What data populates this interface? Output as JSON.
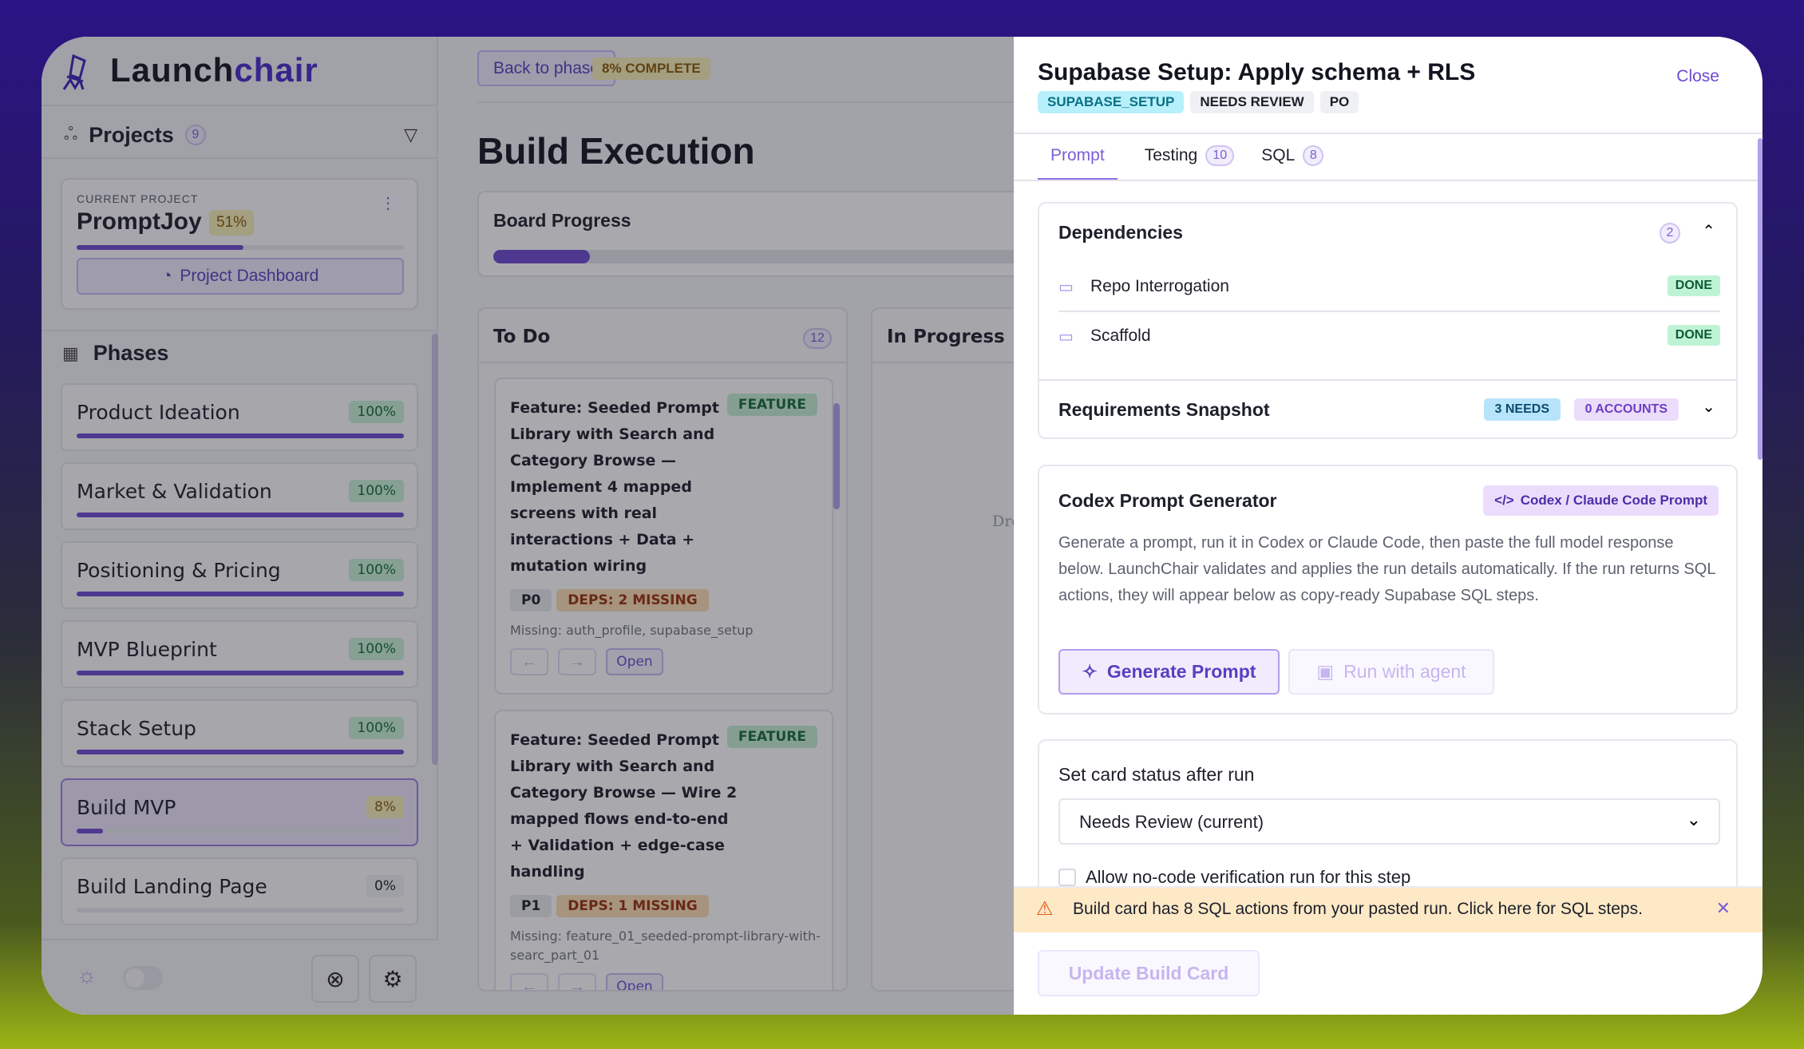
{
  "brand": {
    "name_a": "Launch",
    "name_b": "chair"
  },
  "sidebar": {
    "projects_label": "Projects",
    "projects_count": "9",
    "current_label": "CURRENT PROJECT",
    "project_name": "PromptJoy",
    "project_pct": "51%",
    "project_progress": 51,
    "dashboard_label": "Project Dashboard",
    "phases_label": "Phases",
    "phases": [
      {
        "name": "Product Ideation",
        "pct": "100%",
        "value": 100
      },
      {
        "name": "Market & Validation",
        "pct": "100%",
        "value": 100
      },
      {
        "name": "Positioning & Pricing",
        "pct": "100%",
        "value": 100
      },
      {
        "name": "MVP Blueprint",
        "pct": "100%",
        "value": 100
      },
      {
        "name": "Stack Setup",
        "pct": "100%",
        "value": 100
      },
      {
        "name": "Build MVP",
        "pct": "8%",
        "value": 8,
        "selected": true
      },
      {
        "name": "Build Landing Page",
        "pct": "0%",
        "value": 0
      }
    ]
  },
  "main": {
    "back_label": "Back to phase",
    "complete_badge": "8% COMPLETE",
    "title": "Build Execution",
    "board_progress_label": "Board Progress",
    "board_progress": 8,
    "columns": [
      {
        "title": "To Do",
        "count": "12"
      },
      {
        "title": "In Progress",
        "drop_hint": "Dro"
      }
    ],
    "cards": [
      {
        "title": "Feature: Seeded Prompt Library with Search and Category Browse — Implement 4 mapped screens with real interactions + Data + mutation wiring",
        "type": "FEATURE",
        "priority": "P0",
        "deps": "DEPS: 2 MISSING",
        "missing": "Missing: auth_profile, supabase_setup",
        "open": "Open"
      },
      {
        "title": "Feature: Seeded Prompt Library with Search and Category Browse — Wire 2 mapped flows end-to-end + Validation + edge-case handling",
        "type": "FEATURE",
        "priority": "P1",
        "deps": "DEPS: 1 MISSING",
        "missing": "Missing: feature_01_seeded-prompt-library-with-searc_part_01",
        "open": "Open"
      }
    ]
  },
  "panel": {
    "title": "Supabase Setup: Apply schema + RLS",
    "close": "Close",
    "tags": [
      "SUPABASE_SETUP",
      "NEEDS REVIEW",
      "PO"
    ],
    "tabs": [
      {
        "label": "Prompt",
        "active": true
      },
      {
        "label": "Testing",
        "count": "10"
      },
      {
        "label": "SQL",
        "count": "8"
      }
    ],
    "dependencies": {
      "title": "Dependencies",
      "count": "2",
      "items": [
        {
          "name": "Repo Interrogation",
          "status": "DONE"
        },
        {
          "name": "Scaffold",
          "status": "DONE"
        }
      ]
    },
    "requirements": {
      "title": "Requirements Snapshot",
      "needs": "3 NEEDS",
      "accounts": "0 ACCOUNTS"
    },
    "codex": {
      "title": "Codex Prompt Generator",
      "mode": "Codex / Claude Code Prompt",
      "description": "Generate a prompt, run it in Codex or Claude Code, then paste the full model response below. LaunchChair validates and applies the run details automatically. If the run returns SQL actions, they will appear below as copy-ready Supabase SQL steps.",
      "generate": "Generate Prompt",
      "run_agent": "Run with agent"
    },
    "status": {
      "title": "Set card status after run",
      "selected": "Needs Review (current)",
      "checkbox_label": "Allow no-code verification run for this step"
    },
    "banner": "Build card has 8 SQL actions from your pasted run. Click here for SQL steps.",
    "update": "Update Build Card"
  },
  "colors": {
    "accent": "#6d4ad1",
    "warning_bg": "#fde9c6",
    "done_bg": "#bff3d6"
  }
}
